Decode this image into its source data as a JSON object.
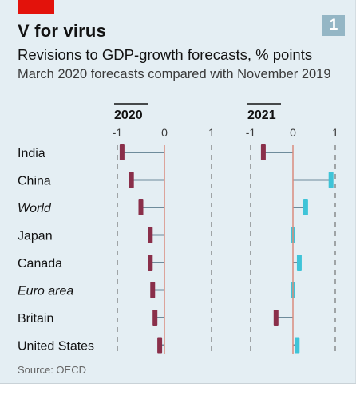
{
  "header": {
    "chart_number": "1",
    "title": "V for virus",
    "subtitle": "Revisions to GDP-growth forecasts, % points",
    "subtitle2": "March 2020 forecasts compared with November 2019"
  },
  "footer": {
    "source": "Source: OECD"
  },
  "colors": {
    "background": "#e4eef3",
    "negative_marker": "#8a2f4a",
    "positive_marker": "#3fc4d8",
    "bar_line": "#6e8b9b",
    "zero_line": "#d98c7e",
    "axis": "#5a5a5a",
    "brand_red": "#e3120b",
    "number_box": "#94b6c5"
  },
  "chart_data": {
    "type": "dot-bar",
    "categories": [
      "India",
      "China",
      "World",
      "Japan",
      "Canada",
      "Euro area",
      "Britain",
      "United States"
    ],
    "italic_categories": [
      "World",
      "Euro area"
    ],
    "xlim": [
      -1,
      1
    ],
    "ticks": [
      -1,
      0,
      1
    ],
    "tick_labels": [
      "-1",
      "0",
      "1"
    ],
    "panels": [
      {
        "title": "2020",
        "values": [
          -0.9,
          -0.7,
          -0.5,
          -0.3,
          -0.3,
          -0.25,
          -0.2,
          -0.1
        ]
      },
      {
        "title": "2021",
        "values": [
          -0.7,
          0.9,
          0.3,
          0.0,
          0.15,
          0.0,
          -0.4,
          0.1
        ]
      }
    ]
  }
}
